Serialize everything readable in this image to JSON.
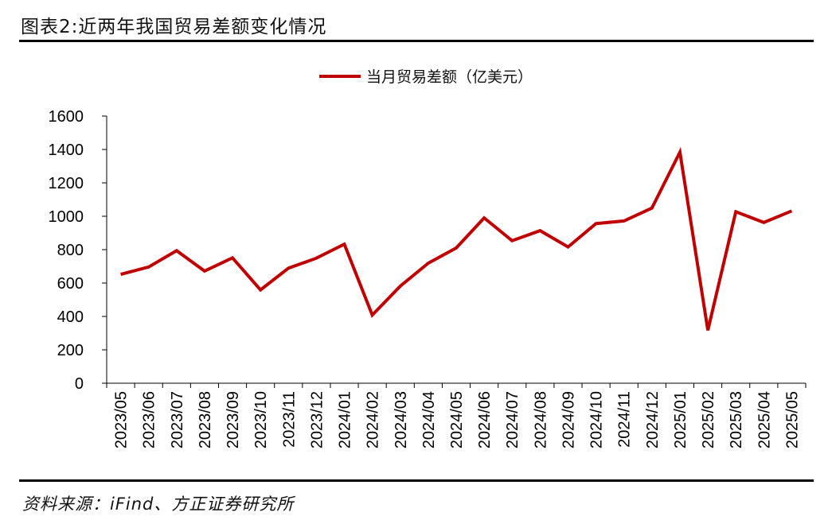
{
  "header": {
    "figure_title": "图表2:近两年我国贸易差额变化情况"
  },
  "footer": {
    "source": "资料来源：iFind、方正证券研究所"
  },
  "chart_data": {
    "type": "line",
    "title": "",
    "xlabel": "",
    "ylabel": "",
    "ylim": [
      0,
      1600
    ],
    "yticks": [
      "0",
      "200",
      "400",
      "600",
      "800",
      "1000",
      "1200",
      "1400",
      "1600"
    ],
    "yticks_values": [
      0,
      200,
      400,
      600,
      800,
      1000,
      1200,
      1400,
      1600
    ],
    "grid": false,
    "legend_position": "top-center",
    "categories": [
      "2023/05",
      "2023/06",
      "2023/07",
      "2023/08",
      "2023/09",
      "2023/10",
      "2023/11",
      "2023/12",
      "2024/01",
      "2024/02",
      "2024/03",
      "2024/04",
      "2024/05",
      "2024/06",
      "2024/07",
      "2024/08",
      "2024/09",
      "2024/10",
      "2024/11",
      "2024/12",
      "2025/01",
      "2025/02",
      "2025/03",
      "2025/04",
      "2025/05"
    ],
    "series": [
      {
        "name": "当月贸易差额（亿美元）",
        "color": "#C00000",
        "values": [
          652,
          696,
          794,
          672,
          751,
          559,
          689,
          749,
          833,
          408,
          582,
          719,
          810,
          990,
          854,
          914,
          816,
          956,
          972,
          1049,
          1384,
          317,
          1027,
          963,
          1032
        ]
      }
    ]
  }
}
